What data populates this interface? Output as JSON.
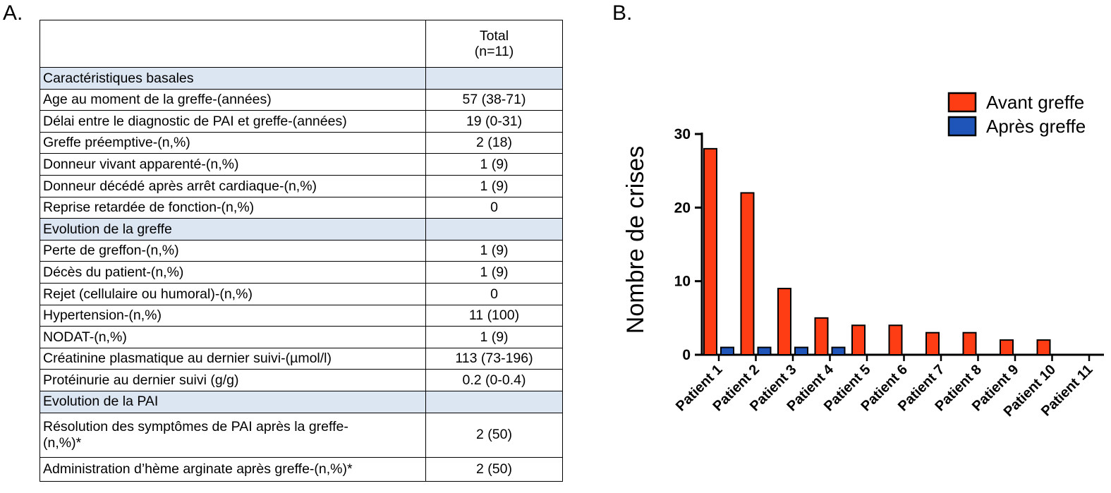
{
  "panel_a": {
    "label": "A.",
    "header": {
      "line1": "Total",
      "line2": "(n=11)"
    },
    "rows": [
      {
        "type": "section",
        "label": "Caractéristiques basales",
        "value": ""
      },
      {
        "type": "row",
        "label": "Age au moment de la greffe-(années)",
        "value": "57 (38-71)"
      },
      {
        "type": "row",
        "label": "Délai entre le diagnostic de PAI et greffe-(années)",
        "value": "19 (0-31)"
      },
      {
        "type": "row",
        "label": "Greffe préemptive-(n,%)",
        "value": "2 (18)"
      },
      {
        "type": "row",
        "label": "Donneur vivant apparenté-(n,%)",
        "value": "1 (9)"
      },
      {
        "type": "row",
        "label": "Donneur décédé après arrêt cardiaque-(n,%)",
        "value": "1 (9)"
      },
      {
        "type": "row",
        "label": "Reprise retardée de fonction-(n,%)",
        "value": "0"
      },
      {
        "type": "section",
        "label": "Evolution de la greffe",
        "value": ""
      },
      {
        "type": "row",
        "label": "Perte de greffon-(n,%)",
        "value": "1 (9)"
      },
      {
        "type": "row",
        "label": "Décès du patient-(n,%)",
        "value": "1 (9)"
      },
      {
        "type": "row",
        "label": "Rejet (cellulaire ou humoral)-(n,%)",
        "value": "0"
      },
      {
        "type": "row",
        "label": "Hypertension-(n,%)",
        "value": "11 (100)"
      },
      {
        "type": "row",
        "label": "NODAT-(n,%)",
        "value": "1 (9)"
      },
      {
        "type": "row",
        "label": "Créatinine plasmatique au dernier suivi-(µmol/l)",
        "value": "113 (73-196)"
      },
      {
        "type": "row",
        "label": "Protéinurie au dernier suivi (g/g)",
        "value": "0.2 (0-0.4)"
      },
      {
        "type": "section",
        "label": "Evolution de la PAI",
        "value": ""
      },
      {
        "type": "tall",
        "label": "Résolution des symptômes de PAI  après la greffe-",
        "label2": "(n,%)*",
        "value": "2 (50)"
      },
      {
        "type": "last",
        "label": "Administration d’hème arginate après greffe-(n,%)*",
        "value": "2 (50)"
      }
    ]
  },
  "panel_b": {
    "label": "B."
  },
  "chart_data": {
    "type": "bar",
    "title": "",
    "xlabel": "",
    "ylabel": "Nombre de crises",
    "categories": [
      "Patient 1",
      "Patient 2",
      "Patient 3",
      "Patient 4",
      "Patient 5",
      "Patient 6",
      "Patient 7",
      "Patient 8",
      "Patient 9",
      "Patient 10",
      "Patient 11"
    ],
    "series": [
      {
        "name": "Avant greffe",
        "color": "#ff3d14",
        "values": [
          28,
          22,
          9,
          5,
          4,
          4,
          3,
          3,
          2,
          2,
          0
        ]
      },
      {
        "name": "Après greffe",
        "color": "#1f55b8",
        "values": [
          1,
          1,
          1,
          1,
          0,
          0,
          0,
          0,
          0,
          0,
          0
        ]
      }
    ],
    "ylim": [
      0,
      30
    ],
    "yticks": [
      0,
      10,
      20,
      30
    ],
    "legend": "top-right",
    "grid": false
  }
}
